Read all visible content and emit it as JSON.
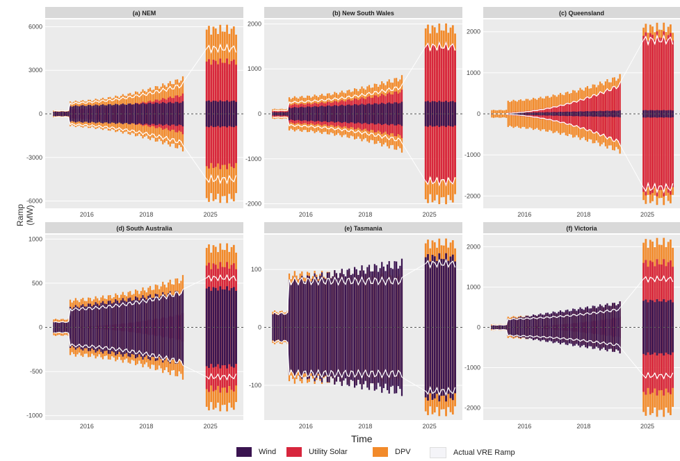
{
  "chart_data": {
    "type": "bar",
    "xlabel": "Time",
    "ylabel": "Ramp (MW)",
    "x_ticks": [
      "2016",
      "2018",
      "2025"
    ],
    "legend": [
      {
        "name": "Wind",
        "color": "#3a1450"
      },
      {
        "name": "Utility Solar",
        "color": "#d7263d"
      },
      {
        "name": "DPV",
        "color": "#f28a2a"
      },
      {
        "name": "Actual VRE Ramp",
        "color": "#e8e8f0"
      }
    ],
    "panels": [
      {
        "title": "(a) NEM",
        "ylim": [
          -6500,
          6500
        ],
        "yticks": [
          6000,
          3000,
          0,
          -3000,
          -6000
        ],
        "amplitude": {
          "wind": [
            500,
            800
          ],
          "utility_solar": [
            300,
            1300,
            3600
          ],
          "dpv": [
            800,
            2400,
            5800
          ],
          "actual": [
            700,
            2000,
            4500
          ]
        }
      },
      {
        "title": "(b) New South Wales",
        "ylim": [
          -2100,
          2100
        ],
        "yticks": [
          2000,
          1000,
          0,
          -1000,
          -2000
        ],
        "amplitude": {
          "wind": [
            120,
            250
          ],
          "utility_solar": [
            200,
            500,
            1500
          ],
          "dpv": [
            350,
            800,
            1900
          ],
          "actual": [
            250,
            600,
            1500
          ]
        }
      },
      {
        "title": "(c) Queensland",
        "ylim": [
          -2300,
          2300
        ],
        "yticks": [
          2000,
          1000,
          0,
          -1000,
          -2000
        ],
        "amplitude": {
          "wind": [
            10,
            80
          ],
          "utility_solar": [
            20,
            700,
            1900
          ],
          "dpv": [
            300,
            900,
            2100
          ],
          "actual": [
            0,
            700,
            1800
          ]
        }
      },
      {
        "title": "(d) South Australia",
        "ylim": [
          -1050,
          1050
        ],
        "yticks": [
          1000,
          500,
          0,
          -500,
          -1000
        ],
        "amplitude": {
          "wind": [
            200,
            400
          ],
          "utility_solar": [
            0,
            150,
            700
          ],
          "dpv": [
            300,
            550,
            900
          ],
          "actual": [
            200,
            400,
            560
          ]
        }
      },
      {
        "title": "(e) Tasmania",
        "ylim": [
          -160,
          160
        ],
        "yticks": [
          100,
          0,
          -100
        ],
        "amplitude": {
          "wind": [
            75,
            110
          ],
          "utility_solar": [
            0,
            0,
            0
          ],
          "dpv": [
            90,
            95,
            145
          ],
          "actual": [
            80,
            80,
            110
          ]
        }
      },
      {
        "title": "(f) Victoria",
        "ylim": [
          -2300,
          2300
        ],
        "yticks": [
          2000,
          1000,
          0,
          -1000,
          -2000
        ],
        "amplitude": {
          "wind": [
            150,
            600
          ],
          "utility_solar": [
            0,
            250,
            1600
          ],
          "dpv": [
            250,
            600,
            2100
          ],
          "actual": [
            200,
            450,
            1200
          ]
        }
      }
    ]
  }
}
